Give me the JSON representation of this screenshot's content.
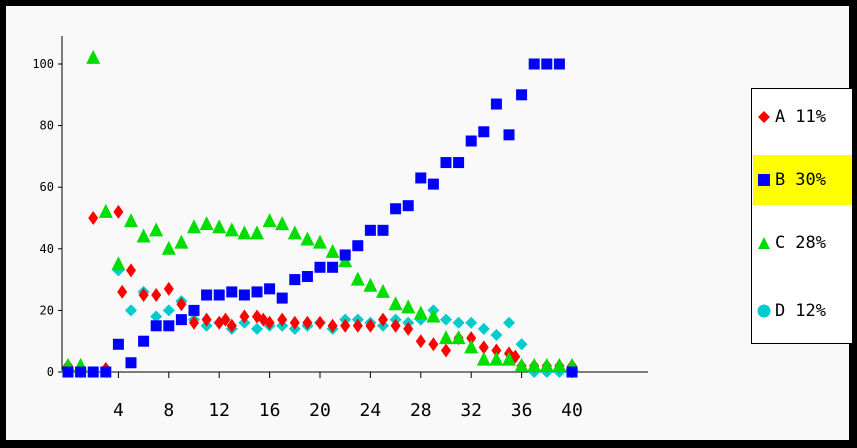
{
  "chart_data": {
    "type": "scatter",
    "title": "",
    "xlabel": "",
    "ylabel": "",
    "xlim": [
      0,
      41
    ],
    "ylim": [
      0,
      110
    ],
    "x_ticks": [
      "4",
      "8",
      "12",
      "16",
      "20",
      "24",
      "28",
      "32",
      "36",
      "40"
    ],
    "x_tick_values": [
      4,
      8,
      12,
      16,
      20,
      24,
      28,
      32,
      36,
      40
    ],
    "y_ticks": [
      "0",
      "20",
      "40",
      "60",
      "80",
      "100"
    ],
    "y_tick_values": [
      0,
      20,
      40,
      60,
      80,
      100
    ],
    "legend_position": "right",
    "highlighted_series": "B",
    "series": [
      {
        "name": "A",
        "percent": "11%",
        "color": "#ff0000",
        "marker": "diamond",
        "points": [
          [
            0,
            2
          ],
          [
            1,
            1
          ],
          [
            2,
            50
          ],
          [
            3,
            1
          ],
          [
            4,
            52
          ],
          [
            4.3,
            26
          ],
          [
            5,
            33
          ],
          [
            6,
            25
          ],
          [
            7,
            25
          ],
          [
            8,
            27
          ],
          [
            9,
            22
          ],
          [
            10,
            16
          ],
          [
            11,
            17
          ],
          [
            12,
            16
          ],
          [
            12.5,
            17
          ],
          [
            13,
            15
          ],
          [
            14,
            18
          ],
          [
            15,
            18
          ],
          [
            15.5,
            17
          ],
          [
            16,
            16
          ],
          [
            17,
            17
          ],
          [
            18,
            16
          ],
          [
            19,
            16
          ],
          [
            20,
            16
          ],
          [
            21,
            15
          ],
          [
            22,
            15
          ],
          [
            23,
            15
          ],
          [
            24,
            15
          ],
          [
            25,
            17
          ],
          [
            26,
            15
          ],
          [
            27,
            14
          ],
          [
            28,
            10
          ],
          [
            29,
            9
          ],
          [
            30,
            7
          ],
          [
            31,
            11
          ],
          [
            32,
            11
          ],
          [
            33,
            8
          ],
          [
            34,
            7
          ],
          [
            35,
            6
          ],
          [
            35.5,
            5
          ],
          [
            36,
            2
          ],
          [
            37,
            2
          ],
          [
            38,
            2
          ],
          [
            39,
            2
          ],
          [
            40,
            2
          ]
        ]
      },
      {
        "name": "B",
        "percent": "30%",
        "color": "#0000ff",
        "marker": "square",
        "points": [
          [
            0,
            0
          ],
          [
            1,
            0
          ],
          [
            2,
            0
          ],
          [
            3,
            0
          ],
          [
            4,
            9
          ],
          [
            5,
            3
          ],
          [
            6,
            10
          ],
          [
            7,
            15
          ],
          [
            8,
            15
          ],
          [
            9,
            17
          ],
          [
            10,
            20
          ],
          [
            11,
            25
          ],
          [
            12,
            25
          ],
          [
            13,
            26
          ],
          [
            14,
            25
          ],
          [
            15,
            26
          ],
          [
            16,
            27
          ],
          [
            17,
            24
          ],
          [
            18,
            30
          ],
          [
            19,
            31
          ],
          [
            20,
            34
          ],
          [
            21,
            34
          ],
          [
            22,
            38
          ],
          [
            23,
            41
          ],
          [
            24,
            46
          ],
          [
            25,
            46
          ],
          [
            26,
            53
          ],
          [
            27,
            54
          ],
          [
            28,
            63
          ],
          [
            29,
            61
          ],
          [
            30,
            68
          ],
          [
            31,
            68
          ],
          [
            32,
            75
          ],
          [
            33,
            78
          ],
          [
            34,
            87
          ],
          [
            35,
            77
          ],
          [
            36,
            90
          ],
          [
            37,
            100
          ],
          [
            38,
            100
          ],
          [
            39,
            100
          ],
          [
            40,
            0
          ]
        ]
      },
      {
        "name": "C",
        "percent": "28%",
        "color": "#00dd00",
        "marker": "triangle",
        "points": [
          [
            0,
            2
          ],
          [
            1,
            2
          ],
          [
            2,
            102
          ],
          [
            3,
            52
          ],
          [
            4,
            35
          ],
          [
            5,
            49
          ],
          [
            6,
            44
          ],
          [
            7,
            46
          ],
          [
            8,
            40
          ],
          [
            9,
            42
          ],
          [
            10,
            47
          ],
          [
            11,
            48
          ],
          [
            12,
            47
          ],
          [
            13,
            46
          ],
          [
            14,
            45
          ],
          [
            15,
            45
          ],
          [
            16,
            49
          ],
          [
            17,
            48
          ],
          [
            18,
            45
          ],
          [
            19,
            43
          ],
          [
            20,
            42
          ],
          [
            21,
            39
          ],
          [
            22,
            36
          ],
          [
            23,
            30
          ],
          [
            24,
            28
          ],
          [
            25,
            26
          ],
          [
            26,
            22
          ],
          [
            27,
            21
          ],
          [
            28,
            19
          ],
          [
            29,
            18
          ],
          [
            30,
            11
          ],
          [
            31,
            11
          ],
          [
            32,
            8
          ],
          [
            33,
            4
          ],
          [
            34,
            4
          ],
          [
            35,
            4
          ],
          [
            36,
            2
          ],
          [
            37,
            2
          ],
          [
            38,
            2
          ],
          [
            39,
            2
          ],
          [
            40,
            2
          ]
        ]
      },
      {
        "name": "D",
        "percent": "12%",
        "color": "#00cccc",
        "marker": "circle",
        "points": [
          [
            0,
            0
          ],
          [
            1,
            0
          ],
          [
            2,
            0
          ],
          [
            3,
            0
          ],
          [
            4,
            33
          ],
          [
            5,
            20
          ],
          [
            6,
            26
          ],
          [
            7,
            18
          ],
          [
            8,
            20
          ],
          [
            9,
            23
          ],
          [
            10,
            17
          ],
          [
            11,
            15
          ],
          [
            12,
            16
          ],
          [
            13,
            14
          ],
          [
            14,
            16
          ],
          [
            15,
            14
          ],
          [
            16,
            15
          ],
          [
            17,
            15
          ],
          [
            18,
            14
          ],
          [
            19,
            15
          ],
          [
            20,
            16
          ],
          [
            21,
            14
          ],
          [
            22,
            17
          ],
          [
            23,
            17
          ],
          [
            24,
            16
          ],
          [
            25,
            15
          ],
          [
            26,
            17
          ],
          [
            27,
            16
          ],
          [
            28,
            17
          ],
          [
            29,
            20
          ],
          [
            30,
            17
          ],
          [
            31,
            16
          ],
          [
            32,
            16
          ],
          [
            33,
            14
          ],
          [
            34,
            12
          ],
          [
            35,
            16
          ],
          [
            36,
            9
          ],
          [
            37,
            0
          ],
          [
            38,
            0
          ],
          [
            39,
            0
          ],
          [
            40,
            1
          ]
        ]
      }
    ]
  },
  "legend": {
    "items": [
      {
        "name": "A",
        "percent": "11%"
      },
      {
        "name": "B",
        "percent": "30%"
      },
      {
        "name": "C",
        "percent": "28%"
      },
      {
        "name": "D",
        "percent": "12%"
      }
    ],
    "highlight_color": "#ffff00"
  }
}
